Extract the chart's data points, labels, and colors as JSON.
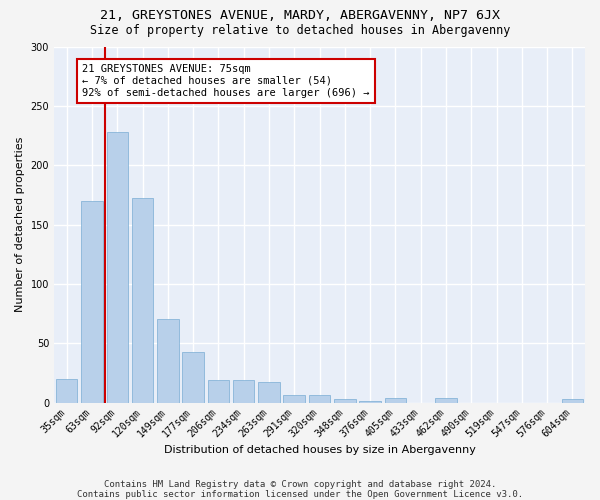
{
  "title": "21, GREYSTONES AVENUE, MARDY, ABERGAVENNY, NP7 6JX",
  "subtitle": "Size of property relative to detached houses in Abergavenny",
  "xlabel": "Distribution of detached houses by size in Abergavenny",
  "ylabel": "Number of detached properties",
  "categories": [
    "35sqm",
    "63sqm",
    "92sqm",
    "120sqm",
    "149sqm",
    "177sqm",
    "206sqm",
    "234sqm",
    "263sqm",
    "291sqm",
    "320sqm",
    "348sqm",
    "376sqm",
    "405sqm",
    "433sqm",
    "462sqm",
    "490sqm",
    "519sqm",
    "547sqm",
    "576sqm",
    "604sqm"
  ],
  "values": [
    20,
    170,
    228,
    172,
    70,
    43,
    19,
    19,
    17,
    6,
    6,
    3,
    1,
    4,
    0,
    4,
    0,
    0,
    0,
    0,
    3
  ],
  "bar_color": "#b8d0ea",
  "bar_edge_color": "#7aadd4",
  "vline_color": "#cc0000",
  "annotation_text": "21 GREYSTONES AVENUE: 75sqm\n← 7% of detached houses are smaller (54)\n92% of semi-detached houses are larger (696) →",
  "annotation_box_color": "#ffffff",
  "annotation_box_edge": "#cc0000",
  "bg_color": "#e8eef8",
  "fig_bg_color": "#f4f4f4",
  "grid_color": "#ffffff",
  "ylim": [
    0,
    300
  ],
  "footer": "Contains HM Land Registry data © Crown copyright and database right 2024.\nContains public sector information licensed under the Open Government Licence v3.0.",
  "title_fontsize": 9.5,
  "subtitle_fontsize": 8.5,
  "xlabel_fontsize": 8,
  "ylabel_fontsize": 8,
  "tick_fontsize": 7,
  "footer_fontsize": 6.5,
  "annotation_fontsize": 7.5,
  "vline_pos": 1.5
}
